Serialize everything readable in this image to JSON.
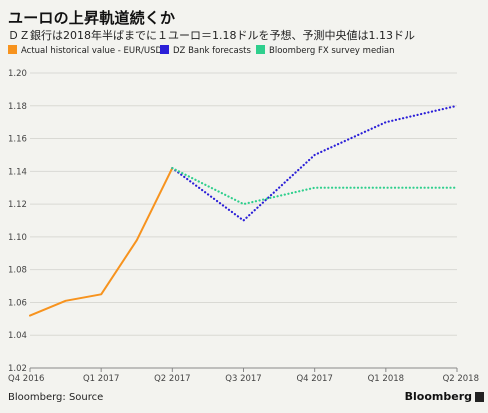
{
  "title": "ユーロの上昇軌道続くか",
  "subtitle": "ＤＺ銀行は2018年半ばまでに１ユーロ＝1.18ドルを予想、予測中央値は1.13ドル",
  "source": "Bloomberg: Source",
  "brand": "Bloomberg",
  "chart_data": {
    "type": "line",
    "categories": [
      "Q4 2016",
      "Q1 2017",
      "Q2 2017",
      "Q3 2017",
      "Q4 2017",
      "Q1 2018",
      "Q2 2018"
    ],
    "ylim": [
      1.02,
      1.2
    ],
    "yticks": [
      "1.02",
      "1.04",
      "1.06",
      "1.08",
      "1.10",
      "1.12",
      "1.14",
      "1.16",
      "1.18",
      "1.20"
    ],
    "grid": true,
    "legend_position": "top-left",
    "series": [
      {
        "name": "Actual historical value - EUR/USD",
        "color": "#f7931e",
        "style": "solid",
        "x": [
          0,
          0.5,
          1.0,
          1.5,
          2.0
        ],
        "values": [
          1.052,
          1.061,
          1.065,
          1.098,
          1.142
        ]
      },
      {
        "name": "DZ Bank forecasts",
        "color": "#2b1fd8",
        "style": "dotted",
        "x": [
          2.0,
          3.0,
          4.0,
          5.0,
          6.0
        ],
        "values": [
          1.142,
          1.11,
          1.15,
          1.17,
          1.18
        ]
      },
      {
        "name": "Bloomberg FX survey median",
        "color": "#2fcf8d",
        "style": "dotted",
        "x": [
          2.0,
          3.0,
          4.0,
          5.0,
          6.0
        ],
        "values": [
          1.142,
          1.12,
          1.13,
          1.13,
          1.13
        ]
      }
    ]
  }
}
